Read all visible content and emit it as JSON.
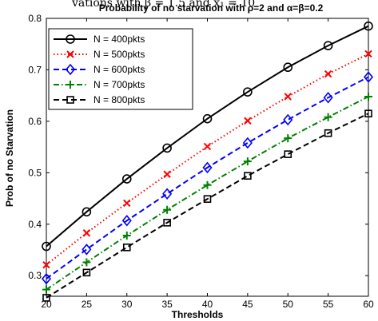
{
  "chart_data": {
    "type": "line",
    "title": "Probability of no starvation with ρ=2 and α=β=0.2",
    "top_fragment": "vations with β = 1.5 and ẋ₁ = 10",
    "xlabel": "Thresholds",
    "ylabel": "Prob of no Starvation",
    "xlim": [
      20,
      60
    ],
    "ylim": [
      0.26,
      0.8
    ],
    "x_ticks": [
      20,
      25,
      30,
      35,
      40,
      45,
      50,
      55,
      60
    ],
    "y_ticks": [
      0.3,
      0.4,
      0.5,
      0.6,
      0.7,
      0.8
    ],
    "grid": false,
    "legend_position": "top-left",
    "x": [
      20,
      25,
      30,
      35,
      40,
      45,
      50,
      55,
      60
    ],
    "series": [
      {
        "name": "N = 400pkts",
        "color": "#000000",
        "line": "solid",
        "marker": "circle",
        "values": [
          0.357,
          0.424,
          0.488,
          0.548,
          0.605,
          0.657,
          0.705,
          0.747,
          0.785
        ]
      },
      {
        "name": "N = 500pkts",
        "color": "#ff0000",
        "line": "dotted",
        "marker": "x",
        "values": [
          0.321,
          0.383,
          0.441,
          0.497,
          0.551,
          0.601,
          0.648,
          0.692,
          0.731
        ]
      },
      {
        "name": "N = 600pkts",
        "color": "#0000ff",
        "line": "dashed",
        "marker": "diamond",
        "values": [
          0.294,
          0.351,
          0.407,
          0.459,
          0.51,
          0.558,
          0.603,
          0.646,
          0.686
        ]
      },
      {
        "name": "N = 700pkts",
        "color": "#008000",
        "line": "dashdot",
        "marker": "plus",
        "values": [
          0.273,
          0.326,
          0.378,
          0.428,
          0.476,
          0.522,
          0.567,
          0.608,
          0.648
        ]
      },
      {
        "name": "N = 800pkts",
        "color": "#000000",
        "line": "dashed",
        "marker": "square",
        "values": [
          0.257,
          0.306,
          0.355,
          0.403,
          0.449,
          0.494,
          0.536,
          0.577,
          0.615
        ]
      }
    ]
  }
}
